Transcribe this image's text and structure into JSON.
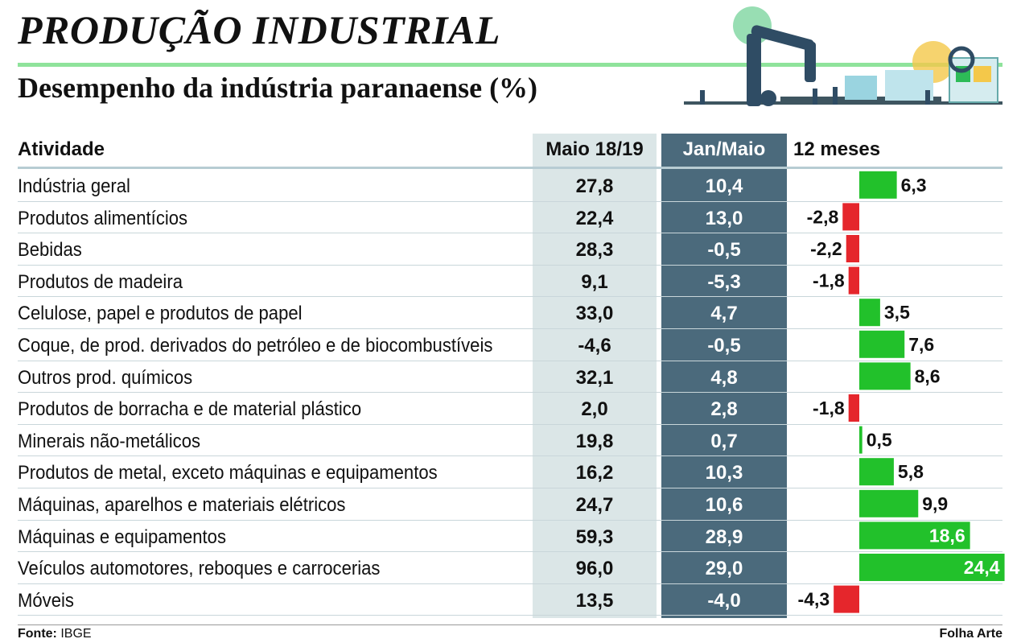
{
  "header": {
    "title": "PRODUÇÃO INDUSTRIAL",
    "subtitle": "Desempenho da indústria paranaense (%)"
  },
  "table": {
    "columns": [
      "Atividade",
      "Maio 18/19",
      "Jan/Maio",
      "12 meses"
    ]
  },
  "chart_data": {
    "type": "table",
    "columns": [
      "Atividade",
      "Maio 18/19",
      "Jan/Maio",
      "12 meses"
    ],
    "rows": [
      {
        "activity": "Indústria geral",
        "maio": "27,8",
        "jan_maio": "10,4",
        "twelve": 6.3,
        "twelve_label": "6,3"
      },
      {
        "activity": "Produtos alimentícios",
        "maio": "22,4",
        "jan_maio": "13,0",
        "twelve": -2.8,
        "twelve_label": "-2,8"
      },
      {
        "activity": "Bebidas",
        "maio": "28,3",
        "jan_maio": "-0,5",
        "twelve": -2.2,
        "twelve_label": "-2,2"
      },
      {
        "activity": "Produtos de madeira",
        "maio": "9,1",
        "jan_maio": "-5,3",
        "twelve": -1.8,
        "twelve_label": "-1,8"
      },
      {
        "activity": "Celulose, papel e produtos de papel",
        "maio": "33,0",
        "jan_maio": "4,7",
        "twelve": 3.5,
        "twelve_label": "3,5"
      },
      {
        "activity": "Coque, de prod. derivados do petróleo e de biocombustíveis",
        "maio": "-4,6",
        "jan_maio": "-0,5",
        "twelve": 7.6,
        "twelve_label": "7,6"
      },
      {
        "activity": "Outros prod. químicos",
        "maio": "32,1",
        "jan_maio": "4,8",
        "twelve": 8.6,
        "twelve_label": "8,6"
      },
      {
        "activity": "Produtos de borracha e de material plástico",
        "maio": "2,0",
        "jan_maio": "2,8",
        "twelve": -1.8,
        "twelve_label": "-1,8"
      },
      {
        "activity": "Minerais não-metálicos",
        "maio": "19,8",
        "jan_maio": "0,7",
        "twelve": 0.5,
        "twelve_label": "0,5"
      },
      {
        "activity": "Produtos de metal, exceto máquinas e equipamentos",
        "maio": "16,2",
        "jan_maio": "10,3",
        "twelve": 5.8,
        "twelve_label": "5,8"
      },
      {
        "activity": "Máquinas, aparelhos e materiais elétricos",
        "maio": "24,7",
        "jan_maio": "10,6",
        "twelve": 9.9,
        "twelve_label": "9,9"
      },
      {
        "activity": "Máquinas e equipamentos",
        "maio": "59,3",
        "jan_maio": "28,9",
        "twelve": 18.6,
        "twelve_label": "18,6"
      },
      {
        "activity": "Veículos automotores, reboques e carrocerias",
        "maio": "96,0",
        "jan_maio": "29,0",
        "twelve": 24.4,
        "twelve_label": "24,4"
      },
      {
        "activity": "Móveis",
        "maio": "13,5",
        "jan_maio": "-4,0",
        "twelve": -4.3,
        "twelve_label": "-4,3"
      }
    ],
    "colors": {
      "positive": "#22c12b",
      "negative": "#e5262c",
      "maio_column": "#dbe6e7",
      "jan_maio_column": "#4b6a7c"
    }
  },
  "footer": {
    "source_label": "Fonte:",
    "source_value": "IBGE",
    "credit": "Folha Arte"
  }
}
